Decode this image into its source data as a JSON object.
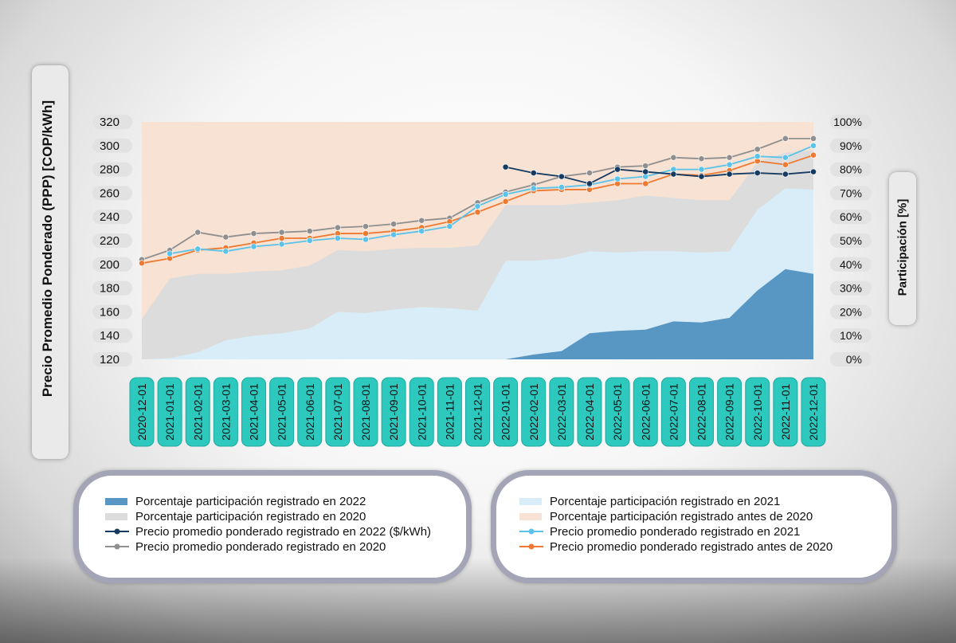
{
  "chart_data": {
    "type": "area",
    "xlabel": "",
    "ylabel": "Precio  Promedio Ponderado (PPP) [COP/kWh]",
    "y2label": "Participación [%]",
    "ylim": [
      120,
      320
    ],
    "y2lim": [
      0,
      100
    ],
    "yticks": [
      "120",
      "140",
      "160",
      "180",
      "200",
      "220",
      "240",
      "260",
      "280",
      "300",
      "320"
    ],
    "y2ticks": [
      "0%",
      "10%",
      "20%",
      "30%",
      "40%",
      "50%",
      "60%",
      "70%",
      "80%",
      "90%",
      "100%"
    ],
    "categories": [
      "2020-12-01",
      "2021-01-01",
      "2021-02-01",
      "2021-03-01",
      "2021-04-01",
      "2021-05-01",
      "2021-06-01",
      "2021-07-01",
      "2021-08-01",
      "2021-09-01",
      "2021-10-01",
      "2021-11-01",
      "2021-12-01",
      "2022-01-01",
      "2022-02-01",
      "2022-03-01",
      "2022-04-01",
      "2022-05-01",
      "2022-06-01",
      "2022-07-01",
      "2022-08-01",
      "2022-09-01",
      "2022-10-01",
      "2022-11-01",
      "2022-12-01"
    ],
    "grid": false,
    "legend_position": "bottom",
    "area_series": [
      {
        "name": "Porcentaje participación registrado antes de 2020",
        "color": "#f8e2d3",
        "values": [
          100,
          100,
          100,
          100,
          100,
          100,
          100,
          100,
          100,
          100,
          100,
          100,
          100,
          100,
          100,
          100,
          100,
          100,
          100,
          100,
          100,
          100,
          100,
          100,
          100
        ]
      },
      {
        "name": "Porcentaje participación registrado en 2020",
        "color": "#dcdcdc",
        "values": [
          17,
          34,
          36,
          36,
          37,
          37.5,
          39.5,
          46,
          45.5,
          46.5,
          47,
          47,
          48,
          65,
          65,
          65,
          66,
          67,
          69,
          68,
          67,
          67,
          83,
          87,
          88
        ]
      },
      {
        "name": "Porcentaje participación registrado en 2021",
        "color": "#d8edf7",
        "values": [
          0,
          0.5,
          3,
          8,
          10,
          11,
          13,
          20,
          19.5,
          21,
          22,
          21.5,
          20.5,
          41.5,
          41.5,
          42.5,
          45.5,
          45,
          45.5,
          45.5,
          45,
          45.5,
          63,
          72,
          71.5
        ]
      },
      {
        "name": "Porcentaje participación registrado en 2022",
        "color": "#5896c3",
        "values": [
          null,
          null,
          null,
          null,
          null,
          null,
          null,
          null,
          null,
          null,
          null,
          null,
          0,
          0,
          2,
          3.5,
          11,
          12,
          12.5,
          16,
          15.5,
          17.5,
          29,
          38,
          36
        ]
      }
    ],
    "line_series": [
      {
        "name": "Precio promedio ponderado registrado en 2020",
        "color": "#8f8f8f",
        "values": [
          204,
          212,
          227,
          223,
          226,
          227,
          228,
          231,
          232,
          234,
          237,
          239,
          252,
          261,
          267,
          274,
          277,
          282,
          283,
          290,
          289,
          290,
          297,
          306,
          306
        ]
      },
      {
        "name": "Precio promedio ponderado registrado antes de 2020",
        "color": "#ee7a32",
        "values": [
          201,
          205,
          212,
          214,
          218,
          222,
          222,
          226,
          226,
          228,
          231,
          236,
          244,
          253,
          262,
          263,
          263,
          268,
          268,
          276,
          275,
          279,
          287,
          284,
          292
        ]
      },
      {
        "name": "Precio promedio ponderado registrado en 2021",
        "color": "#5bc2e9",
        "values": [
          null,
          209,
          213,
          211,
          215,
          217,
          220,
          222,
          221,
          225,
          228,
          232,
          249,
          259,
          264,
          265,
          267,
          272,
          274,
          280,
          280,
          284,
          291,
          290,
          300
        ]
      },
      {
        "name": "Precio promedio ponderado registrado en 2022 ($/kWh)",
        "color": "#153b63",
        "values": [
          null,
          null,
          null,
          null,
          null,
          null,
          null,
          null,
          null,
          null,
          null,
          null,
          null,
          282,
          277,
          274,
          268,
          280,
          278,
          276,
          274,
          276,
          277,
          276,
          278
        ]
      }
    ]
  },
  "legend": {
    "left": [
      {
        "label": "Porcentaje participación registrado en 2022",
        "kind": "area",
        "color": "#5896c3"
      },
      {
        "label": "Porcentaje participación registrado en 2020",
        "kind": "area",
        "color": "#dcdcdc"
      },
      {
        "label": "Precio promedio ponderado registrado en 2022 ($/kWh)",
        "kind": "line",
        "color": "#153b63"
      },
      {
        "label": "Precio promedio ponderado registrado en 2020",
        "kind": "line",
        "color": "#8f8f8f"
      }
    ],
    "right": [
      {
        "label": "Porcentaje participación registrado en 2021",
        "kind": "area",
        "color": "#d8edf7"
      },
      {
        "label": "Porcentaje participación registrado antes de 2020",
        "kind": "area",
        "color": "#f8e2d3"
      },
      {
        "label": "Precio promedio ponderado registrado en 2021",
        "kind": "line",
        "color": "#5bc2e9"
      },
      {
        "label": "Precio promedio ponderado registrado antes de 2020",
        "kind": "line",
        "color": "#ee7a32"
      }
    ]
  },
  "colors": {
    "date_label_bg": "#2ec9be",
    "tick_label_bg": "#e2e2e2",
    "legend_border": "#a3a4b6"
  }
}
